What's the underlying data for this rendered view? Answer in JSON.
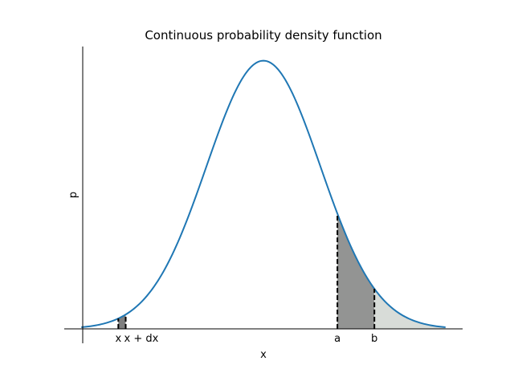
{
  "chart_data": {
    "type": "line",
    "title": "Continuous probability density function",
    "xlabel": "x",
    "ylabel": "p",
    "x_range": [
      -3.2,
      3.2
    ],
    "xlim": [
      -3.5,
      3.5
    ],
    "ylim": [
      0.0,
      0.42
    ],
    "mean": 0,
    "std": 1,
    "series": [
      {
        "type": "normal-pdf",
        "color": "#1f77b4"
      }
    ],
    "regions": [
      {
        "label_from": "x",
        "label_to": "x + dx",
        "from": -2.55,
        "to": -2.42,
        "fill": "#7f7f7f"
      },
      {
        "label_from": "a",
        "label_to": "b",
        "from": 1.3,
        "to": 1.95,
        "fill": "#939493"
      },
      {
        "from": 1.95,
        "to": 3.2,
        "fill": "#d8dcd8"
      }
    ],
    "ticks": [
      {
        "value": -2.55,
        "label": "x",
        "anchor": "middle"
      },
      {
        "value": -2.42,
        "label": "x + dx",
        "anchor": "start"
      },
      {
        "value": 1.3,
        "label": "a",
        "anchor": "middle"
      },
      {
        "value": 1.95,
        "label": "b",
        "anchor": "middle"
      }
    ],
    "grid": false
  }
}
